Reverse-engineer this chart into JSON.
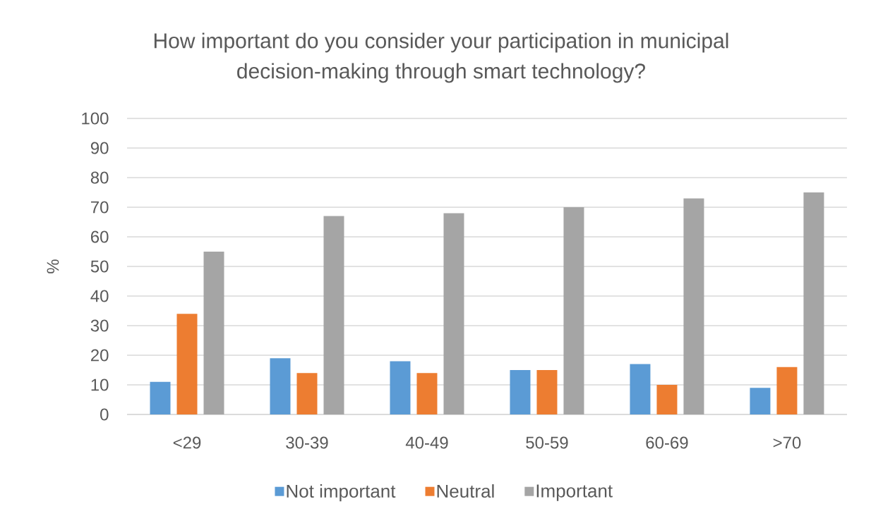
{
  "chart_data": {
    "type": "bar",
    "title": "How important do you consider your participation in municipal decision-making through smart technology?",
    "ylabel": "%",
    "categories": [
      "<29",
      "30-39",
      "40-49",
      "50-59",
      "60-69",
      ">70"
    ],
    "series": [
      {
        "name": "Not important",
        "color": "#5b9bd5",
        "values": [
          11,
          19,
          18,
          15,
          17,
          9
        ]
      },
      {
        "name": "Neutral",
        "color": "#ed7d31",
        "values": [
          34,
          14,
          14,
          15,
          10,
          16
        ]
      },
      {
        "name": "Important",
        "color": "#a5a5a5",
        "values": [
          55,
          67,
          68,
          70,
          73,
          75
        ]
      }
    ],
    "ylim": [
      0,
      100
    ],
    "yticks": [
      0,
      10,
      20,
      30,
      40,
      50,
      60,
      70,
      80,
      90,
      100
    ],
    "grid": "y",
    "legend": "bottom"
  }
}
